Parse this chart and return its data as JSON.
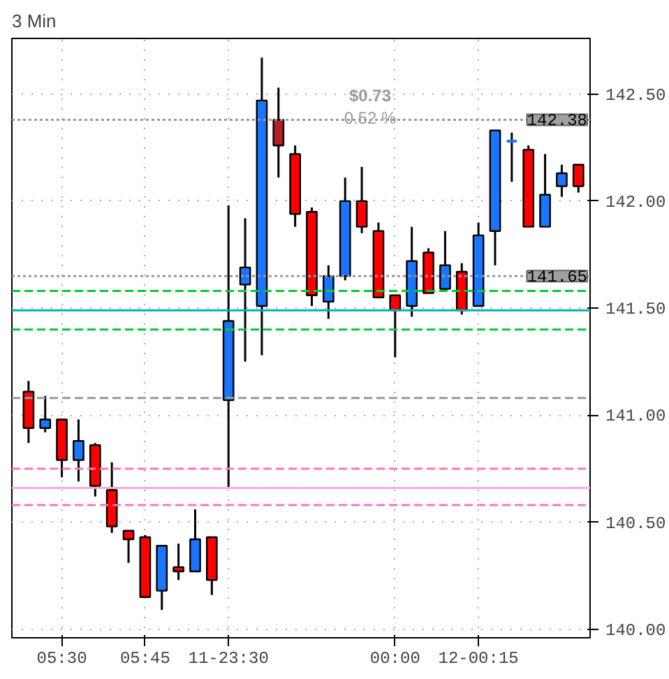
{
  "chart_data": {
    "type": "candlestick",
    "title": "3 Min",
    "categories": [
      null,
      null,
      "05:30",
      null,
      null,
      null,
      null,
      "05:45",
      null,
      null,
      null,
      null,
      "11-23:30",
      null,
      null,
      null,
      null,
      null,
      null,
      null,
      null,
      null,
      "00:00",
      null,
      null,
      null,
      null,
      "12-00:15",
      null,
      null,
      null,
      null,
      null,
      null
    ],
    "ohlc": [
      [
        141.11,
        141.16,
        140.87,
        140.94
      ],
      [
        140.94,
        141.09,
        140.92,
        140.98
      ],
      [
        140.98,
        140.98,
        140.71,
        140.79
      ],
      [
        140.79,
        140.98,
        140.69,
        140.88
      ],
      [
        140.86,
        140.87,
        140.62,
        140.67
      ],
      [
        140.65,
        140.78,
        140.45,
        140.48
      ],
      [
        140.46,
        140.46,
        140.31,
        140.42
      ],
      [
        140.43,
        140.44,
        140.15,
        140.15
      ],
      [
        140.18,
        140.39,
        140.09,
        140.39
      ],
      [
        140.29,
        140.4,
        140.23,
        140.27
      ],
      [
        140.27,
        140.56,
        140.27,
        140.42
      ],
      [
        140.43,
        140.43,
        140.16,
        140.23
      ],
      [
        141.07,
        141.98,
        140.66,
        141.44
      ],
      [
        141.61,
        141.92,
        141.25,
        141.69
      ],
      [
        141.51,
        142.67,
        141.28,
        142.47
      ],
      [
        142.38,
        142.53,
        142.11,
        142.26
      ],
      [
        142.22,
        142.26,
        141.88,
        141.94
      ],
      [
        141.95,
        141.97,
        141.51,
        141.56
      ],
      [
        141.53,
        141.7,
        141.45,
        141.65
      ],
      [
        141.65,
        142.11,
        141.63,
        142.0
      ],
      [
        142.0,
        142.16,
        141.85,
        141.88
      ],
      [
        141.86,
        141.9,
        141.55,
        141.55
      ],
      [
        141.56,
        141.56,
        141.27,
        141.49
      ],
      [
        141.51,
        141.88,
        141.46,
        141.72
      ],
      [
        141.76,
        141.78,
        141.57,
        141.57
      ],
      [
        141.59,
        141.86,
        141.58,
        141.7
      ],
      [
        141.67,
        141.71,
        141.47,
        141.49
      ],
      [
        141.51,
        141.9,
        141.51,
        141.84
      ],
      [
        141.86,
        142.33,
        141.7,
        142.33
      ],
      [
        142.28,
        142.32,
        142.09,
        142.28
      ],
      [
        142.24,
        142.26,
        141.88,
        141.88
      ],
      [
        141.88,
        142.22,
        141.88,
        142.03
      ],
      [
        142.07,
        142.17,
        142.02,
        142.13
      ],
      [
        142.17,
        142.17,
        142.04,
        142.07
      ]
    ],
    "colors": [
      "#ff0000",
      "#1a75ff",
      "#ff0000",
      "#1a75ff",
      "#ff0000",
      "#ff0000",
      "#ff0000",
      "#ff0000",
      "#1a75ff",
      "#ff0000",
      "#1a75ff",
      "#ff0000",
      "#1a75ff",
      "#1a75ff",
      "#1a75ff",
      "#b22222",
      "#ff0000",
      "#ff0000",
      "#1a75ff",
      "#1a75ff",
      "#ff0000",
      "#ff0000",
      "#ff0000",
      "#1a75ff",
      "#ff0000",
      "#1a75ff",
      "#ff0000",
      "#1a75ff",
      "#1a75ff",
      "#1a75ff",
      "#ff0000",
      "#1a75ff",
      "#1a75ff",
      "#ff0000"
    ],
    "ylim": [
      139.96,
      142.76
    ],
    "yticks": [
      {
        "value": 140.0,
        "label": "140.00"
      },
      {
        "value": 140.5,
        "label": "140.50"
      },
      {
        "value": 141.0,
        "label": "141.00"
      },
      {
        "value": 141.5,
        "label": "141.50"
      },
      {
        "value": 142.0,
        "label": "142.00"
      },
      {
        "value": 142.5,
        "label": "142.50"
      }
    ],
    "ref_lines": [
      {
        "axis": "y",
        "value": 142.38,
        "label": "142.38",
        "color": "#999999",
        "line_style": "dotted"
      },
      {
        "axis": "y",
        "value": 141.65,
        "label": "141.65",
        "color": "#999999",
        "line_style": "dotted"
      },
      {
        "axis": "y",
        "value": 141.58,
        "color": "#00cc33",
        "line_style": "dashed"
      },
      {
        "axis": "y",
        "value": 141.49,
        "color": "#00b3b3",
        "line_style": "solid"
      },
      {
        "axis": "y",
        "value": 141.4,
        "color": "#00cc33",
        "line_style": "dashed"
      },
      {
        "axis": "y",
        "value": 141.08,
        "color": "#999999",
        "line_style": "dashed"
      },
      {
        "axis": "y",
        "value": 140.75,
        "color": "#ff77bb",
        "line_style": "dashed"
      },
      {
        "axis": "y",
        "value": 140.66,
        "color": "#ffaad4",
        "line_style": "solid"
      },
      {
        "axis": "y",
        "value": 140.58,
        "color": "#ff77bb",
        "line_style": "dashed"
      }
    ],
    "annotations": [
      "$0.73",
      "0.52 %"
    ],
    "grid": true
  }
}
